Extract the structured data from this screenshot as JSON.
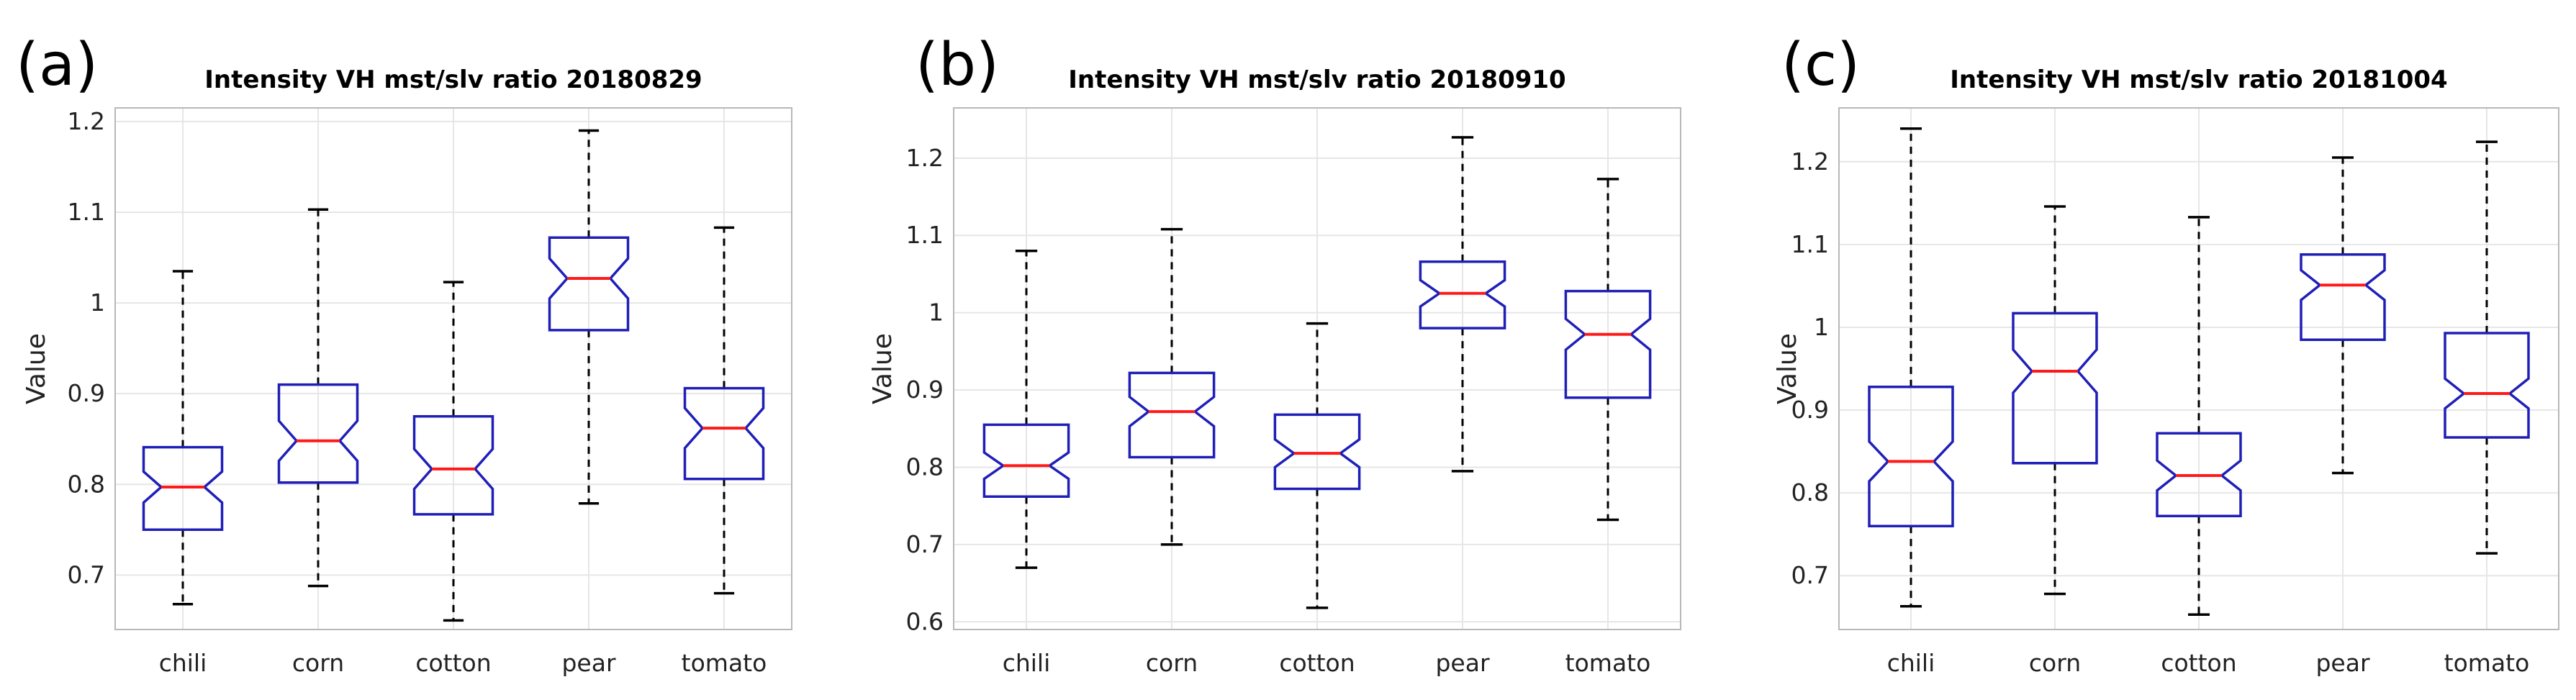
{
  "chart_data": [
    {
      "type": "boxplot",
      "panel_label": "(a)",
      "title": "Intensity VH mst/slv ratio 20180829",
      "xlabel": "",
      "ylabel": "Value",
      "ylim": [
        0.64,
        1.215
      ],
      "yticks": [
        0.7,
        0.8,
        0.9,
        1.0,
        1.1,
        1.2
      ],
      "ytick_labels": [
        "0.7",
        "0.8",
        "0.9",
        "1",
        "1.1",
        "1.2"
      ],
      "grid": true,
      "categories": [
        "chili",
        "corn",
        "cotton",
        "pear",
        "tomato"
      ],
      "boxes": [
        {
          "min": 0.668,
          "q1": 0.75,
          "notch_low": 0.78,
          "median": 0.797,
          "notch_high": 0.814,
          "q3": 0.841,
          "max": 1.035
        },
        {
          "min": 0.688,
          "q1": 0.802,
          "notch_low": 0.826,
          "median": 0.848,
          "notch_high": 0.87,
          "q3": 0.91,
          "max": 1.103
        },
        {
          "min": 0.65,
          "q1": 0.767,
          "notch_low": 0.795,
          "median": 0.817,
          "notch_high": 0.839,
          "q3": 0.875,
          "max": 1.023
        },
        {
          "min": 0.779,
          "q1": 0.97,
          "notch_low": 1.005,
          "median": 1.027,
          "notch_high": 1.049,
          "q3": 1.072,
          "max": 1.19
        },
        {
          "min": 0.68,
          "q1": 0.806,
          "notch_low": 0.84,
          "median": 0.862,
          "notch_high": 0.884,
          "q3": 0.906,
          "max": 1.083
        }
      ]
    },
    {
      "type": "boxplot",
      "panel_label": "(b)",
      "title": "Intensity VH mst/slv ratio 20180910",
      "xlabel": "",
      "ylabel": "Value",
      "ylim": [
        0.59,
        1.265
      ],
      "yticks": [
        0.6,
        0.7,
        0.8,
        0.9,
        1.0,
        1.1,
        1.2
      ],
      "ytick_labels": [
        "0.6",
        "0.7",
        "0.8",
        "0.9",
        "1",
        "1.1",
        "1.2"
      ],
      "grid": true,
      "categories": [
        "chili",
        "corn",
        "cotton",
        "pear",
        "tomato"
      ],
      "boxes": [
        {
          "min": 0.67,
          "q1": 0.762,
          "notch_low": 0.785,
          "median": 0.802,
          "notch_high": 0.819,
          "q3": 0.855,
          "max": 1.08
        },
        {
          "min": 0.7,
          "q1": 0.813,
          "notch_low": 0.853,
          "median": 0.872,
          "notch_high": 0.891,
          "q3": 0.922,
          "max": 1.108
        },
        {
          "min": 0.618,
          "q1": 0.772,
          "notch_low": 0.8,
          "median": 0.818,
          "notch_high": 0.836,
          "q3": 0.868,
          "max": 0.986
        },
        {
          "min": 0.795,
          "q1": 0.98,
          "notch_low": 1.008,
          "median": 1.025,
          "notch_high": 1.042,
          "q3": 1.066,
          "max": 1.227
        },
        {
          "min": 0.732,
          "q1": 0.89,
          "notch_low": 0.952,
          "median": 0.972,
          "notch_high": 0.992,
          "q3": 1.028,
          "max": 1.173
        }
      ]
    },
    {
      "type": "boxplot",
      "panel_label": "(c)",
      "title": "Intensity VH mst/slv ratio 20181004",
      "xlabel": "",
      "ylabel": "Value",
      "ylim": [
        0.635,
        1.265
      ],
      "yticks": [
        0.7,
        0.8,
        0.9,
        1.0,
        1.1,
        1.2
      ],
      "ytick_labels": [
        "0.7",
        "0.8",
        "0.9",
        "1",
        "1.1",
        "1.2"
      ],
      "grid": true,
      "categories": [
        "chili",
        "corn",
        "cotton",
        "pear",
        "tomato"
      ],
      "boxes": [
        {
          "min": 0.663,
          "q1": 0.76,
          "notch_low": 0.814,
          "median": 0.838,
          "notch_high": 0.862,
          "q3": 0.928,
          "max": 1.24
        },
        {
          "min": 0.678,
          "q1": 0.836,
          "notch_low": 0.921,
          "median": 0.947,
          "notch_high": 0.973,
          "q3": 1.017,
          "max": 1.146
        },
        {
          "min": 0.653,
          "q1": 0.772,
          "notch_low": 0.803,
          "median": 0.821,
          "notch_high": 0.839,
          "q3": 0.872,
          "max": 1.133
        },
        {
          "min": 0.824,
          "q1": 0.985,
          "notch_low": 1.033,
          "median": 1.051,
          "notch_high": 1.069,
          "q3": 1.088,
          "max": 1.205
        },
        {
          "min": 0.727,
          "q1": 0.867,
          "notch_low": 0.902,
          "median": 0.92,
          "notch_high": 0.938,
          "q3": 0.993,
          "max": 1.224
        }
      ]
    }
  ]
}
